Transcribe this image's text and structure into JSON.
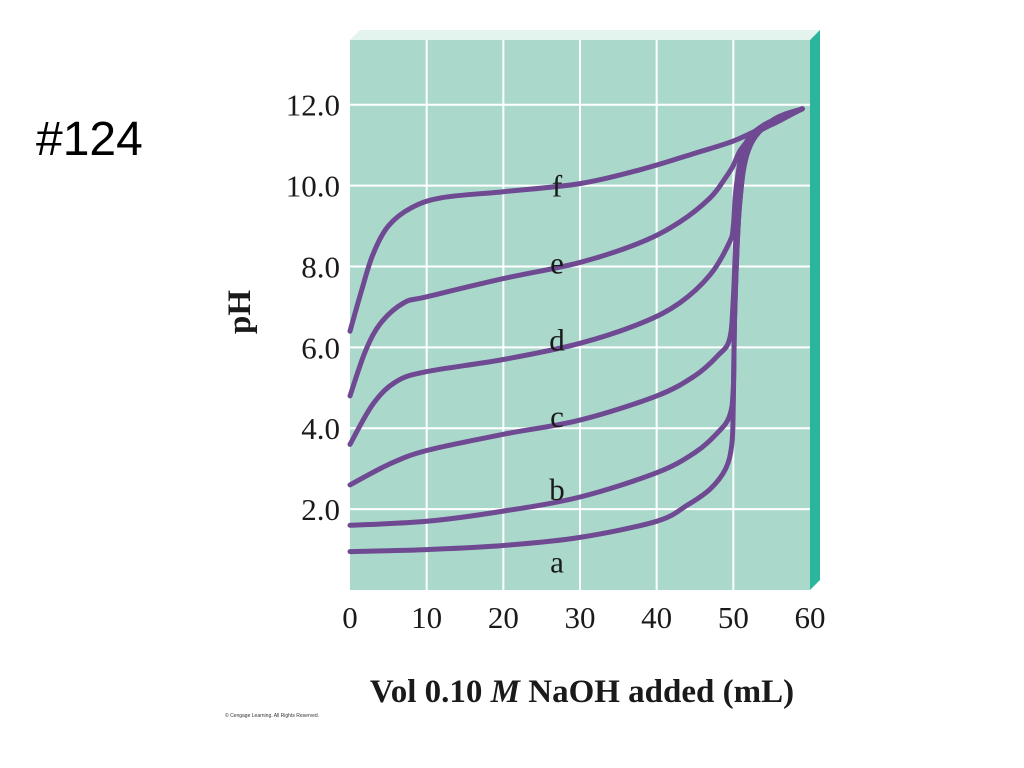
{
  "slide": {
    "number_label": "#124"
  },
  "copyright": "© Cengage Learning. All Rights Reserved.",
  "colors": {
    "plot_background": "#aad9cb",
    "plot_edge": "#2bb59c",
    "plot_top": "#e3f3ee",
    "grid": "#ffffff",
    "curve": "#6f4a93"
  },
  "chart_data": {
    "type": "line",
    "xlabel_parts": [
      "Vol 0.10 ",
      "M",
      " NaOH added (mL)"
    ],
    "ylabel": "pH",
    "xlim": [
      0,
      60
    ],
    "ylim": [
      0,
      13.6
    ],
    "x_ticks": [
      0,
      10,
      20,
      30,
      40,
      50,
      60
    ],
    "x_tick_labels": [
      "0",
      "10",
      "20",
      "30",
      "40",
      "50",
      "60"
    ],
    "y_ticks": [
      2,
      4,
      6,
      8,
      10,
      12
    ],
    "y_tick_labels": [
      "2.0",
      "4.0",
      "6.0",
      "8.0",
      "10.0",
      "12.0"
    ],
    "grid": true,
    "series": [
      {
        "name": "a",
        "label_at": [
          27,
          0.7
        ],
        "points": [
          [
            0,
            0.95
          ],
          [
            10,
            1.0
          ],
          [
            20,
            1.1
          ],
          [
            30,
            1.3
          ],
          [
            40,
            1.7
          ],
          [
            44,
            2.1
          ],
          [
            47,
            2.5
          ],
          [
            49,
            3.0
          ],
          [
            49.8,
            3.6
          ],
          [
            50,
            4.6
          ],
          [
            50.2,
            7.0
          ],
          [
            50.8,
            9.5
          ],
          [
            52,
            10.9
          ],
          [
            55,
            11.6
          ],
          [
            59,
            11.9
          ]
        ]
      },
      {
        "name": "b",
        "label_at": [
          27,
          2.5
        ],
        "points": [
          [
            0,
            1.6
          ],
          [
            10,
            1.7
          ],
          [
            20,
            1.95
          ],
          [
            30,
            2.3
          ],
          [
            40,
            2.9
          ],
          [
            45,
            3.4
          ],
          [
            48,
            3.9
          ],
          [
            49.5,
            4.3
          ],
          [
            50,
            5.0
          ],
          [
            50.2,
            7.0
          ],
          [
            50.8,
            9.5
          ],
          [
            52,
            10.9
          ],
          [
            55,
            11.6
          ],
          [
            59,
            11.9
          ]
        ]
      },
      {
        "name": "c",
        "label_at": [
          27,
          4.3
        ],
        "points": [
          [
            0,
            2.6
          ],
          [
            5,
            3.1
          ],
          [
            10,
            3.45
          ],
          [
            20,
            3.85
          ],
          [
            30,
            4.2
          ],
          [
            40,
            4.8
          ],
          [
            45,
            5.3
          ],
          [
            48,
            5.8
          ],
          [
            49.5,
            6.2
          ],
          [
            50,
            7.2
          ],
          [
            50.4,
            9.0
          ],
          [
            51,
            10.3
          ],
          [
            52.5,
            11.2
          ],
          [
            55,
            11.6
          ],
          [
            59,
            11.9
          ]
        ]
      },
      {
        "name": "d",
        "label_at": [
          27,
          6.2
        ],
        "points": [
          [
            0,
            3.6
          ],
          [
            3,
            4.6
          ],
          [
            6,
            5.15
          ],
          [
            10,
            5.4
          ],
          [
            20,
            5.7
          ],
          [
            30,
            6.1
          ],
          [
            38,
            6.6
          ],
          [
            43,
            7.1
          ],
          [
            47,
            7.8
          ],
          [
            49.5,
            8.6
          ],
          [
            50,
            9.0
          ],
          [
            50.4,
            10.0
          ],
          [
            51.5,
            11.0
          ],
          [
            54,
            11.5
          ],
          [
            59,
            11.9
          ]
        ]
      },
      {
        "name": "e",
        "label_at": [
          27,
          8.1
        ],
        "points": [
          [
            0,
            4.8
          ],
          [
            2,
            5.9
          ],
          [
            4,
            6.6
          ],
          [
            7,
            7.1
          ],
          [
            10,
            7.25
          ],
          [
            20,
            7.7
          ],
          [
            30,
            8.1
          ],
          [
            38,
            8.6
          ],
          [
            43,
            9.1
          ],
          [
            47,
            9.7
          ],
          [
            49,
            10.2
          ],
          [
            50,
            10.5
          ],
          [
            51,
            10.9
          ],
          [
            53,
            11.3
          ],
          [
            56,
            11.6
          ],
          [
            59,
            11.9
          ]
        ]
      },
      {
        "name": "f",
        "label_at": [
          27,
          10.0
        ],
        "points": [
          [
            0,
            6.4
          ],
          [
            1.5,
            7.4
          ],
          [
            3,
            8.3
          ],
          [
            5,
            9.0
          ],
          [
            8,
            9.45
          ],
          [
            12,
            9.7
          ],
          [
            20,
            9.85
          ],
          [
            30,
            10.05
          ],
          [
            38,
            10.4
          ],
          [
            45,
            10.8
          ],
          [
            50,
            11.1
          ],
          [
            54,
            11.45
          ],
          [
            59,
            11.9
          ]
        ]
      }
    ]
  }
}
